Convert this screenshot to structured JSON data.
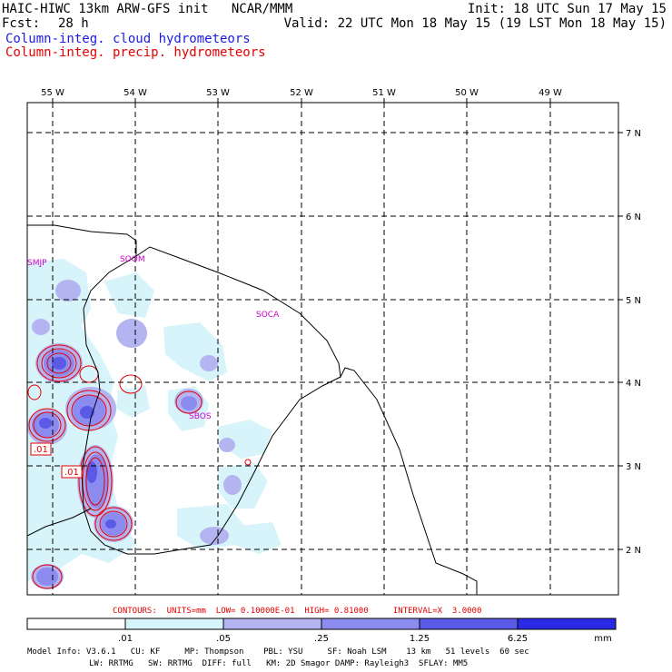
{
  "header": {
    "model_line": "HAIC-HIWC 13km ARW-GFS init   NCAR/MMM",
    "init_line": "Init: 18 UTC Sun 17 May 15",
    "fcst_label": "Fcst:",
    "fcst_value": "28 h",
    "valid_line": "Valid: 22 UTC Mon 18 May 15 (19 LST Mon 18 May 15)",
    "field_cloud": "Column-integ. cloud hydrometeors",
    "field_precip": "Column-integ. precip. hydrometeors"
  },
  "map": {
    "lon_labels": [
      "55 W",
      "54 W",
      "53 W",
      "52 W",
      "51 W",
      "50 W",
      "49 W"
    ],
    "lat_labels": [
      "7 N",
      "6 N",
      "5 N",
      "4 N",
      "3 N",
      "2 N"
    ],
    "stations": [
      "SMJP",
      "SOCA",
      "SOOM",
      "SBOS"
    ],
    "contour_labels": [
      ".01",
      ".01"
    ]
  },
  "contours_line": "CONTOURS:  UNITS=mm  LOW= 0.10000E-01  HIGH= 0.81000     INTERVAL=X  3.0000",
  "colorbar": {
    "ticks": [
      ".01",
      ".05",
      ".25",
      "1.25",
      "6.25"
    ],
    "unit": "mm",
    "colors": [
      "#ffffff",
      "#d8f4fb",
      "#b4b4f0",
      "#8c8cf0",
      "#5a5ae6",
      "#2a2ae6",
      "#0a0ae8"
    ]
  },
  "model_info": {
    "line1": "Model Info: V3.6.1   CU: KF     MP: Thompson    PBL: YSU     SF: Noah LSM    13 km   51 levels  60 sec",
    "line2": "LW: RRTMG   SW: RRTMG  DIFF: full   KM: 2D Smagor DAMP: Rayleigh3  SFLAY: MM5"
  }
}
